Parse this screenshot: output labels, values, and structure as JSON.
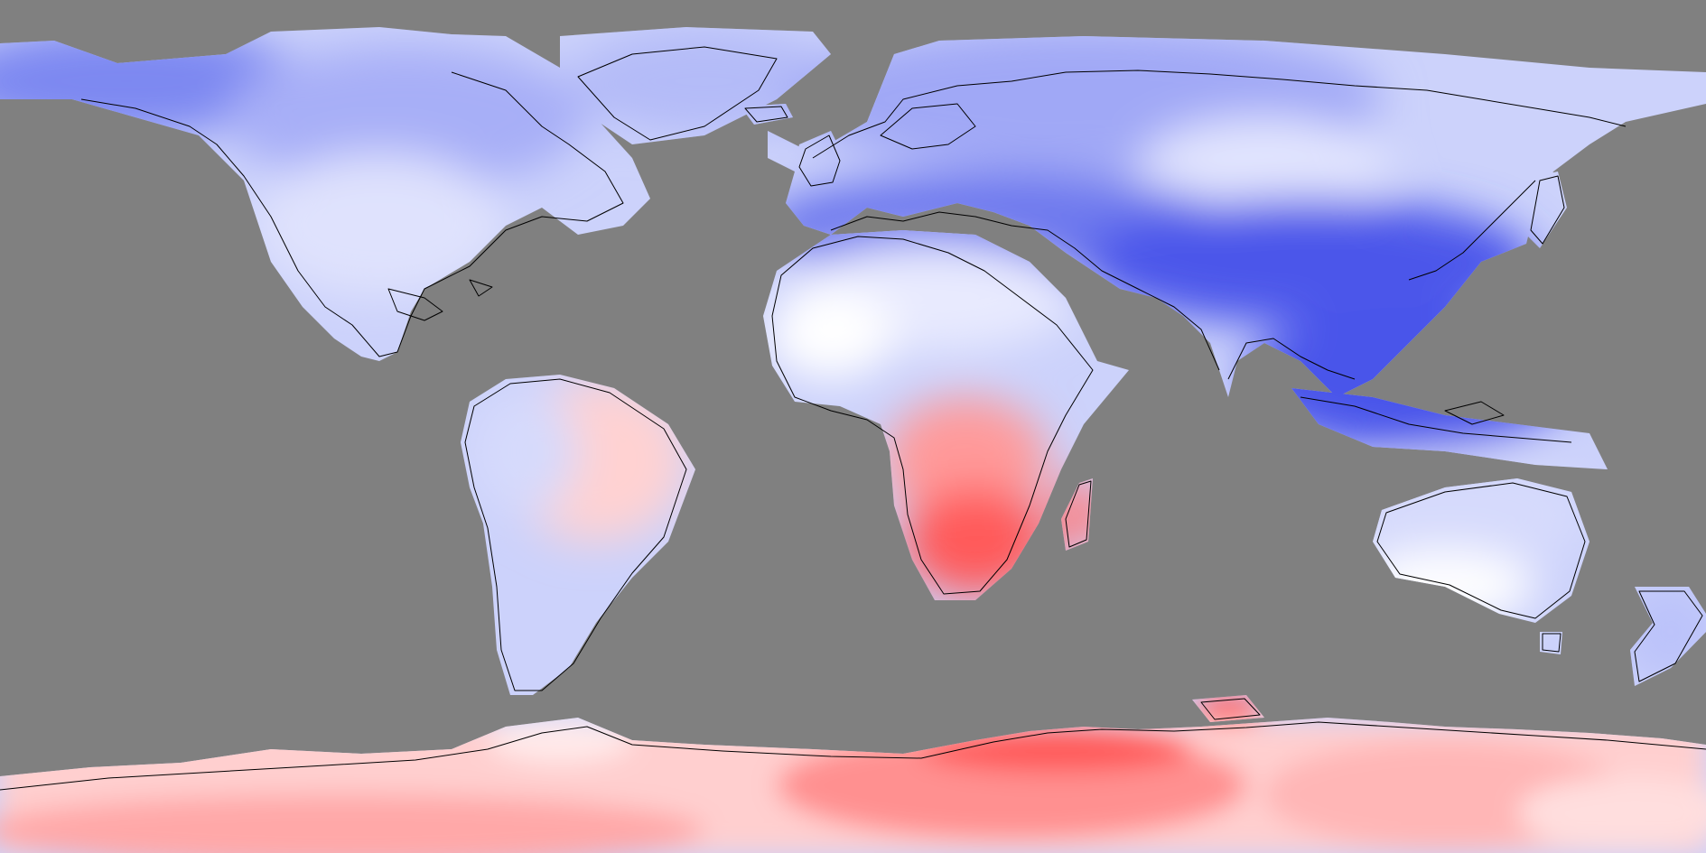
{
  "map": {
    "projection": "equirectangular",
    "extent": "global",
    "ocean_mask": "#808080",
    "coastline_color": "#000000",
    "color_scale": {
      "strong_negative": "#3c46e8",
      "moderate_negative": "#8c96f4",
      "weak_negative": "#d6dafc",
      "neutral": "#ffffff",
      "weak_positive": "#ffd2d2",
      "moderate_positive": "#ff9a9a",
      "strong_positive": "#ff4646"
    }
  }
}
